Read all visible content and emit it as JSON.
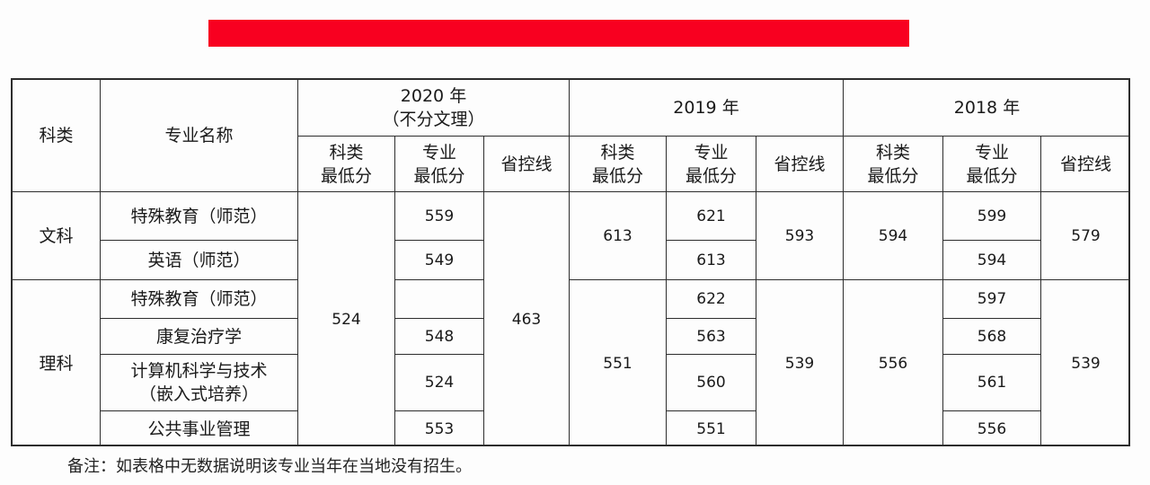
{
  "banner": {
    "color": "#f80020",
    "visible_fragments": [
      "",
      "",
      "",
      ""
    ]
  },
  "table": {
    "headers": {
      "category": "科类",
      "major": "专业名称",
      "years": [
        {
          "label": "2020 年",
          "sublabel": "（不分文理）"
        },
        {
          "label": "2019 年"
        },
        {
          "label": "2018 年"
        }
      ],
      "sub": [
        "科类\n最低分",
        "专业\n最低分",
        "省控线"
      ]
    },
    "groups": [
      {
        "category": "文科",
        "y2020": {
          "category_min": "524",
          "control": "463"
        },
        "y2019": {
          "category_min": "613",
          "control": "593"
        },
        "y2018": {
          "category_min": "594",
          "control": "579"
        },
        "rows": [
          {
            "major": "特殊教育（师范）",
            "y2020_major_min": "559",
            "y2019_major_min": "621",
            "y2018_major_min": "599"
          },
          {
            "major": "英语（师范）",
            "y2020_major_min": "549",
            "y2019_major_min": "613",
            "y2018_major_min": "594"
          }
        ]
      },
      {
        "category": "理科",
        "y2019": {
          "category_min": "551",
          "control": "539"
        },
        "y2018": {
          "category_min": "556",
          "control": "539"
        },
        "rows": [
          {
            "major": "特殊教育（师范）",
            "y2020_major_min": "",
            "y2019_major_min": "622",
            "y2018_major_min": "597"
          },
          {
            "major": "康复治疗学",
            "y2020_major_min": "548",
            "y2019_major_min": "563",
            "y2018_major_min": "568"
          },
          {
            "major": "计算机科学与技术\n（嵌入式培养）",
            "y2020_major_min": "524",
            "y2019_major_min": "560",
            "y2018_major_min": "561"
          },
          {
            "major": "公共事业管理",
            "y2020_major_min": "553",
            "y2019_major_min": "551",
            "y2018_major_min": "556"
          }
        ]
      }
    ]
  },
  "note": "备注：如表格中无数据说明该专业当年在当地没有招生。"
}
